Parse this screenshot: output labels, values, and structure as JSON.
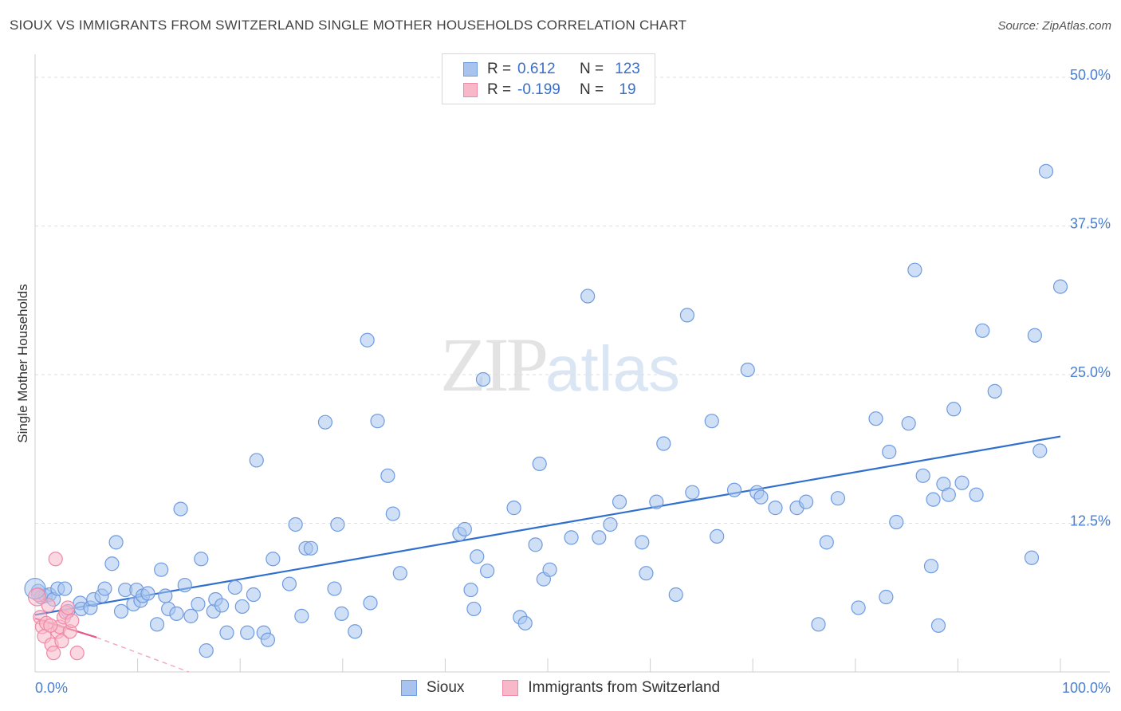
{
  "title": "SIOUX VS IMMIGRANTS FROM SWITZERLAND SINGLE MOTHER HOUSEHOLDS CORRELATION CHART",
  "source": "Source: ZipAtlas.com",
  "watermark": {
    "zip": "ZIP",
    "atlas": "atlas"
  },
  "legend": {
    "rows": [
      {
        "r_label": "R =",
        "r_value": "0.612",
        "n_label": "N =",
        "n_value": "123",
        "color": "#a8c4ee",
        "stroke": "#6f9be0"
      },
      {
        "r_label": "R =",
        "r_value": "-0.199",
        "n_label": "N =",
        "n_value": "19",
        "color": "#f7b8c9",
        "stroke": "#ee89a6"
      }
    ]
  },
  "bottom_legend": [
    {
      "label": "Sioux",
      "color": "#a8c4ee",
      "stroke": "#6f9be0"
    },
    {
      "label": "Immigrants from Switzerland",
      "color": "#f7b8c9",
      "stroke": "#ee89a6"
    }
  ],
  "chart_data": {
    "type": "scatter",
    "ylabel": "Single Mother Households",
    "xlim": [
      0,
      100
    ],
    "ylim": [
      0,
      50
    ],
    "y_ticks": [
      {
        "value": 12.5,
        "label": "12.5%"
      },
      {
        "value": 25.0,
        "label": "25.0%"
      },
      {
        "value": 37.5,
        "label": "37.5%"
      },
      {
        "value": 50.0,
        "label": "50.0%"
      }
    ],
    "x_tick_labels": [
      {
        "value": 0,
        "label": "0.0%"
      },
      {
        "value": 100,
        "label": "100.0%"
      }
    ],
    "series": [
      {
        "name": "Sioux",
        "color": "#a8c4ee",
        "stroke": "#6f9be0",
        "trend": {
          "x": [
            0,
            100
          ],
          "y": [
            4.8,
            19.8
          ],
          "color": "#2f6fce"
        },
        "points": [
          [
            0.3,
            6.8
          ],
          [
            0.6,
            6.3
          ],
          [
            1.0,
            6.4
          ],
          [
            1.4,
            6.5
          ],
          [
            1.8,
            6.1
          ],
          [
            2.2,
            7.0
          ],
          [
            2.9,
            7.0
          ],
          [
            3.2,
            5.1
          ],
          [
            4.4,
            5.8
          ],
          [
            4.5,
            5.3
          ],
          [
            5.4,
            5.4
          ],
          [
            5.7,
            6.1
          ],
          [
            6.5,
            6.4
          ],
          [
            6.8,
            7.0
          ],
          [
            7.5,
            9.1
          ],
          [
            7.9,
            10.9
          ],
          [
            8.4,
            5.1
          ],
          [
            8.8,
            6.9
          ],
          [
            9.6,
            5.7
          ],
          [
            9.9,
            6.9
          ],
          [
            10.3,
            6.0
          ],
          [
            10.5,
            6.4
          ],
          [
            11.0,
            6.6
          ],
          [
            11.9,
            4.0
          ],
          [
            12.3,
            8.6
          ],
          [
            12.7,
            6.4
          ],
          [
            13.0,
            5.3
          ],
          [
            13.8,
            4.9
          ],
          [
            14.2,
            13.7
          ],
          [
            14.6,
            7.3
          ],
          [
            15.2,
            4.7
          ],
          [
            15.9,
            5.7
          ],
          [
            16.2,
            9.5
          ],
          [
            16.7,
            1.8
          ],
          [
            17.4,
            5.1
          ],
          [
            17.6,
            6.1
          ],
          [
            18.2,
            5.6
          ],
          [
            18.7,
            3.3
          ],
          [
            19.5,
            7.1
          ],
          [
            20.2,
            5.5
          ],
          [
            20.7,
            3.3
          ],
          [
            21.3,
            6.5
          ],
          [
            21.6,
            17.8
          ],
          [
            22.3,
            3.3
          ],
          [
            22.7,
            2.7
          ],
          [
            23.2,
            9.5
          ],
          [
            24.8,
            7.4
          ],
          [
            25.4,
            12.4
          ],
          [
            26.0,
            4.7
          ],
          [
            26.4,
            10.4
          ],
          [
            26.9,
            10.4
          ],
          [
            28.3,
            21.0
          ],
          [
            29.2,
            7.0
          ],
          [
            29.5,
            12.4
          ],
          [
            29.9,
            4.9
          ],
          [
            31.2,
            3.4
          ],
          [
            32.4,
            27.9
          ],
          [
            32.7,
            5.8
          ],
          [
            33.4,
            21.1
          ],
          [
            34.4,
            16.5
          ],
          [
            34.9,
            13.3
          ],
          [
            35.6,
            8.3
          ],
          [
            41.4,
            11.6
          ],
          [
            41.9,
            12.0
          ],
          [
            42.5,
            6.9
          ],
          [
            42.8,
            5.3
          ],
          [
            43.1,
            9.7
          ],
          [
            43.7,
            24.6
          ],
          [
            44.1,
            8.5
          ],
          [
            46.7,
            13.8
          ],
          [
            47.3,
            4.6
          ],
          [
            47.8,
            4.1
          ],
          [
            48.8,
            10.7
          ],
          [
            49.2,
            17.5
          ],
          [
            49.6,
            7.8
          ],
          [
            50.2,
            8.6
          ],
          [
            52.3,
            11.3
          ],
          [
            53.9,
            31.6
          ],
          [
            55.0,
            11.3
          ],
          [
            56.1,
            12.4
          ],
          [
            57.0,
            14.3
          ],
          [
            59.2,
            10.9
          ],
          [
            59.6,
            8.3
          ],
          [
            60.6,
            14.3
          ],
          [
            61.3,
            19.2
          ],
          [
            62.5,
            6.5
          ],
          [
            63.6,
            30.0
          ],
          [
            64.1,
            15.1
          ],
          [
            66.0,
            21.1
          ],
          [
            66.5,
            11.4
          ],
          [
            68.2,
            15.3
          ],
          [
            69.5,
            25.4
          ],
          [
            70.4,
            15.1
          ],
          [
            70.8,
            14.7
          ],
          [
            72.2,
            13.8
          ],
          [
            74.3,
            13.8
          ],
          [
            75.2,
            14.3
          ],
          [
            76.4,
            4.0
          ],
          [
            77.2,
            10.9
          ],
          [
            78.3,
            14.6
          ],
          [
            80.3,
            5.4
          ],
          [
            82.0,
            21.3
          ],
          [
            83.0,
            6.3
          ],
          [
            83.3,
            18.5
          ],
          [
            84.0,
            12.6
          ],
          [
            85.2,
            20.9
          ],
          [
            85.8,
            33.8
          ],
          [
            86.6,
            16.5
          ],
          [
            87.4,
            8.9
          ],
          [
            87.6,
            14.5
          ],
          [
            88.1,
            3.9
          ],
          [
            88.6,
            15.8
          ],
          [
            89.1,
            14.9
          ],
          [
            89.6,
            22.1
          ],
          [
            90.4,
            15.9
          ],
          [
            91.8,
            14.9
          ],
          [
            92.4,
            28.7
          ],
          [
            93.6,
            23.6
          ],
          [
            97.2,
            9.6
          ],
          [
            97.5,
            28.3
          ],
          [
            98.0,
            18.6
          ],
          [
            98.6,
            42.1
          ],
          [
            100.0,
            32.4
          ]
        ]
      },
      {
        "name": "Immigrants from Switzerland",
        "color": "#f7b8c9",
        "stroke": "#ee89a6",
        "trend": {
          "x": [
            0,
            6.0
          ],
          "y": [
            4.5,
            2.9
          ],
          "color": "#e35a87"
        },
        "trend_dashed": {
          "x": [
            6.0,
            15.0
          ],
          "y": [
            2.9,
            0.0
          ],
          "color": "#f0a7bd"
        },
        "points": [
          [
            0.3,
            6.5
          ],
          [
            0.5,
            4.6
          ],
          [
            0.7,
            3.8
          ],
          [
            0.9,
            3.0
          ],
          [
            1.1,
            4.1
          ],
          [
            1.3,
            5.6
          ],
          [
            1.6,
            2.3
          ],
          [
            1.8,
            1.6
          ],
          [
            2.0,
            9.5
          ],
          [
            2.2,
            3.4
          ],
          [
            2.4,
            3.8
          ],
          [
            2.6,
            2.6
          ],
          [
            2.8,
            4.6
          ],
          [
            3.0,
            5.0
          ],
          [
            3.2,
            5.4
          ],
          [
            3.4,
            3.4
          ],
          [
            3.6,
            4.3
          ],
          [
            4.1,
            1.6
          ],
          [
            1.5,
            3.9
          ]
        ]
      }
    ]
  }
}
